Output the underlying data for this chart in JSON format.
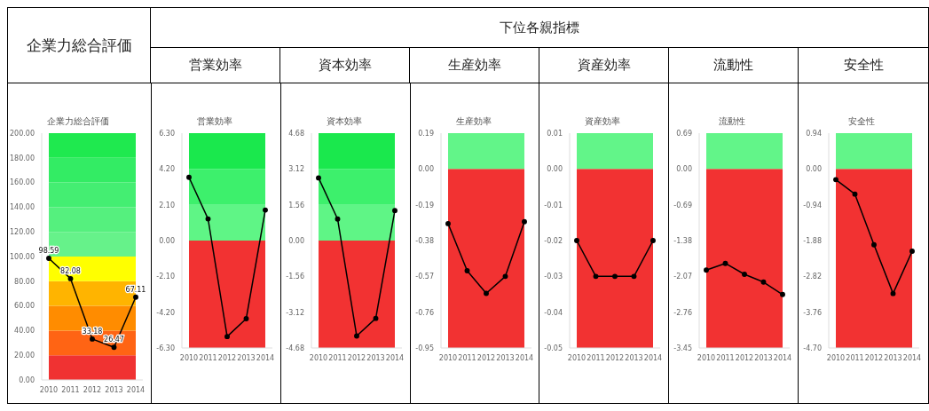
{
  "chart_data": [
    {
      "type": "line",
      "title": "企業力総合評価",
      "subtitle": "企業力総合評価",
      "categories": [
        "2010",
        "2011",
        "2012",
        "2013",
        "2014"
      ],
      "values": [
        98.59,
        82.08,
        33.18,
        26.47,
        67.11
      ],
      "color": "#000000",
      "marker": "circle",
      "data_labels": true,
      "ylim": [
        0,
        200
      ],
      "yticks": [
        {
          "value": 0,
          "label": "0.00"
        },
        {
          "value": 20,
          "label": "20.00"
        },
        {
          "value": 40,
          "label": "40.00"
        },
        {
          "value": 60,
          "label": "60.00"
        },
        {
          "value": 80,
          "label": "80.00"
        },
        {
          "value": 100,
          "label": "100.00"
        },
        {
          "value": 120,
          "label": "120.00"
        },
        {
          "value": 140,
          "label": "140.00"
        },
        {
          "value": 160,
          "label": "160.00"
        },
        {
          "value": 180,
          "label": "180.00"
        },
        {
          "value": 200,
          "label": "200.00"
        }
      ],
      "bands": [
        {
          "axis": "y",
          "from": 0,
          "to": 20,
          "color": "#f03232"
        },
        {
          "axis": "y",
          "from": 20,
          "to": 40,
          "color": "#ff6414"
        },
        {
          "axis": "y",
          "from": 40,
          "to": 60,
          "color": "#ff8c00"
        },
        {
          "axis": "y",
          "from": 60,
          "to": 80,
          "color": "#ffb400"
        },
        {
          "axis": "y",
          "from": 80,
          "to": 100,
          "color": "#ffff00"
        },
        {
          "axis": "y",
          "from": 100,
          "to": 120,
          "color": "#66f28a"
        },
        {
          "axis": "y",
          "from": 120,
          "to": 140,
          "color": "#55f07e"
        },
        {
          "axis": "y",
          "from": 140,
          "to": 160,
          "color": "#44ee72"
        },
        {
          "axis": "y",
          "from": 160,
          "to": 180,
          "color": "#33ec64"
        },
        {
          "axis": "y",
          "from": 180,
          "to": 200,
          "color": "#1fe94f"
        }
      ]
    },
    {
      "type": "line",
      "title": "営業効率",
      "subtitle": "営業効率",
      "annotations": [
        "下位各親指標"
      ],
      "categories": [
        "2010",
        "2011",
        "2012",
        "2013",
        "2014"
      ],
      "values": [
        3.71,
        1.27,
        -5.63,
        -4.58,
        1.79
      ],
      "color": "#000000",
      "marker": "circle",
      "ylim": [
        -6.3,
        6.3
      ],
      "yticks": [
        {
          "value": -6.3,
          "label": "-6.30"
        },
        {
          "value": -4.2,
          "label": "-4.20"
        },
        {
          "value": -2.1,
          "label": "-2.10"
        },
        {
          "value": 0,
          "label": "0.00"
        },
        {
          "value": 2.1,
          "label": "2.10"
        },
        {
          "value": 4.2,
          "label": "4.20"
        },
        {
          "value": 6.3,
          "label": "6.30"
        }
      ],
      "bands": [
        {
          "axis": "y",
          "from": -6.3,
          "to": 0,
          "color": "#f23232"
        },
        {
          "axis": "y",
          "from": 0,
          "to": 2.1,
          "color": "#5ff586"
        },
        {
          "axis": "y",
          "from": 2.1,
          "to": 4.2,
          "color": "#3df06c"
        },
        {
          "axis": "y",
          "from": 4.2,
          "to": 6.3,
          "color": "#1ae84d"
        }
      ]
    },
    {
      "type": "line",
      "title": "資本効率",
      "subtitle": "資本効率",
      "categories": [
        "2010",
        "2011",
        "2012",
        "2013",
        "2014"
      ],
      "values": [
        2.73,
        0.94,
        -4.16,
        -3.39,
        1.31
      ],
      "color": "#000000",
      "marker": "circle",
      "ylim": [
        -4.68,
        4.68
      ],
      "yticks": [
        {
          "value": -4.68,
          "label": "-4.68"
        },
        {
          "value": -3.12,
          "label": "-3.12"
        },
        {
          "value": -1.56,
          "label": "-1.56"
        },
        {
          "value": 0,
          "label": "0.00"
        },
        {
          "value": 1.56,
          "label": "1.56"
        },
        {
          "value": 3.12,
          "label": "3.12"
        },
        {
          "value": 4.68,
          "label": "4.68"
        }
      ],
      "bands": [
        {
          "axis": "y",
          "from": -4.68,
          "to": 0,
          "color": "#f23232"
        },
        {
          "axis": "y",
          "from": 0,
          "to": 1.56,
          "color": "#5ff586"
        },
        {
          "axis": "y",
          "from": 1.56,
          "to": 3.12,
          "color": "#3df06c"
        },
        {
          "axis": "y",
          "from": 3.12,
          "to": 4.68,
          "color": "#1ae84d"
        }
      ]
    },
    {
      "type": "line",
      "title": "生産効率",
      "subtitle": "生産効率",
      "categories": [
        "2010",
        "2011",
        "2012",
        "2013",
        "2014"
      ],
      "values": [
        -0.29,
        -0.54,
        -0.66,
        -0.57,
        -0.28
      ],
      "color": "#000000",
      "marker": "circle",
      "ylim": [
        -0.95,
        0.19
      ],
      "yticks": [
        {
          "value": -0.95,
          "label": "-0.95"
        },
        {
          "value": -0.76,
          "label": "-0.76"
        },
        {
          "value": -0.57,
          "label": "-0.57"
        },
        {
          "value": -0.38,
          "label": "-0.38"
        },
        {
          "value": -0.19,
          "label": "-0.19"
        },
        {
          "value": 0,
          "label": "0.00"
        },
        {
          "value": 0.19,
          "label": "0.19"
        }
      ],
      "bands": [
        {
          "axis": "y",
          "from": -0.95,
          "to": 0,
          "color": "#f23232"
        },
        {
          "axis": "y",
          "from": 0,
          "to": 0.19,
          "color": "#62f589"
        }
      ]
    },
    {
      "type": "line",
      "title": "資産効率",
      "subtitle": "資産効率",
      "categories": [
        "2010",
        "2011",
        "2012",
        "2013",
        "2014"
      ],
      "values": [
        -0.02,
        -0.03,
        -0.03,
        -0.03,
        -0.02
      ],
      "color": "#000000",
      "marker": "circle",
      "ylim": [
        -0.05,
        0.01
      ],
      "yticks": [
        {
          "value": -0.05,
          "label": "-0.05"
        },
        {
          "value": -0.04,
          "label": "-0.04"
        },
        {
          "value": -0.03,
          "label": "-0.03"
        },
        {
          "value": -0.02,
          "label": "-0.02"
        },
        {
          "value": -0.01,
          "label": "-0.01"
        },
        {
          "value": 0,
          "label": "0.00"
        },
        {
          "value": 0.01,
          "label": "0.01"
        }
      ],
      "bands": [
        {
          "axis": "y",
          "from": -0.05,
          "to": 0,
          "color": "#f23232"
        },
        {
          "axis": "y",
          "from": 0,
          "to": 0.01,
          "color": "#62f589"
        }
      ]
    },
    {
      "type": "line",
      "title": "流動性",
      "subtitle": "流動性",
      "categories": [
        "2010",
        "2011",
        "2012",
        "2013",
        "2014"
      ],
      "values": [
        -1.95,
        -1.82,
        -2.03,
        -2.18,
        -2.42
      ],
      "color": "#000000",
      "marker": "circle",
      "ylim": [
        -3.45,
        0.69
      ],
      "yticks": [
        {
          "value": -3.45,
          "label": "-3.45"
        },
        {
          "value": -2.76,
          "label": "-2.76"
        },
        {
          "value": -2.07,
          "label": "-2.07"
        },
        {
          "value": -1.38,
          "label": "-1.38"
        },
        {
          "value": -0.69,
          "label": "-0.69"
        },
        {
          "value": 0,
          "label": "0.00"
        },
        {
          "value": 0.69,
          "label": "0.69"
        }
      ],
      "bands": [
        {
          "axis": "y",
          "from": -3.45,
          "to": 0,
          "color": "#f23232"
        },
        {
          "axis": "y",
          "from": 0,
          "to": 0.69,
          "color": "#62f589"
        }
      ]
    },
    {
      "type": "line",
      "title": "安全性",
      "subtitle": "安全性",
      "categories": [
        "2010",
        "2011",
        "2012",
        "2013",
        "2014"
      ],
      "values": [
        -0.28,
        -0.66,
        -1.99,
        -3.27,
        -2.16
      ],
      "color": "#000000",
      "marker": "circle",
      "ylim": [
        -4.7,
        0.94
      ],
      "yticks": [
        {
          "value": -4.7,
          "label": "-4.70"
        },
        {
          "value": -3.76,
          "label": "-3.76"
        },
        {
          "value": -2.82,
          "label": "-2.82"
        },
        {
          "value": -1.88,
          "label": "-1.88"
        },
        {
          "value": -0.94,
          "label": "-0.94"
        },
        {
          "value": 0,
          "label": "0.00"
        },
        {
          "value": 0.94,
          "label": "0.94"
        }
      ],
      "bands": [
        {
          "axis": "y",
          "from": -4.7,
          "to": 0,
          "color": "#f23232"
        },
        {
          "axis": "y",
          "from": 0,
          "to": 0.94,
          "color": "#62f589"
        }
      ]
    }
  ]
}
